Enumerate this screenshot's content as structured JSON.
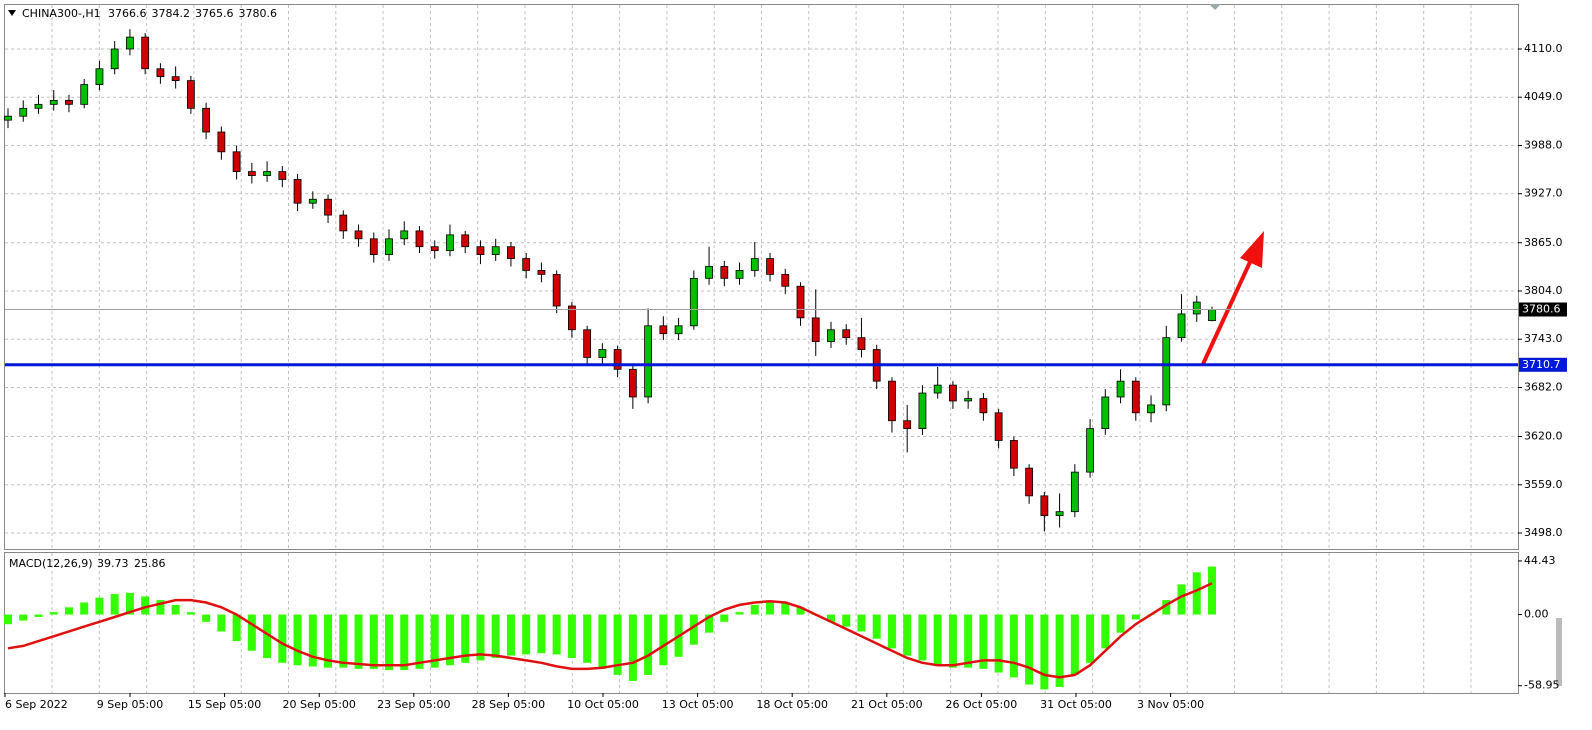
{
  "chart_data": [
    {
      "type": "candlestick",
      "symbol": "CHINA300-,H1",
      "header_values": [
        3766.6,
        3784.2,
        3765.6,
        3780.6
      ],
      "open": [
        4020,
        4025,
        4035,
        4040,
        4045,
        4040,
        4065,
        4085,
        4110,
        4125,
        4085,
        4075,
        4070,
        4035,
        4005,
        3980,
        3955,
        3950,
        3955,
        3945,
        3915,
        3920,
        3900,
        3880,
        3870,
        3850,
        3870,
        3880,
        3860,
        3855,
        3875,
        3860,
        3850,
        3860,
        3845,
        3830,
        3825,
        3785,
        3755,
        3720,
        3730,
        3705,
        3670,
        3760,
        3750,
        3760,
        3820,
        3835,
        3820,
        3830,
        3845,
        3825,
        3810,
        3770,
        3740,
        3755,
        3745,
        3730,
        3690,
        3640,
        3630,
        3675,
        3685,
        3665,
        3668,
        3650,
        3615,
        3580,
        3545,
        3520,
        3525,
        3575,
        3630,
        3670,
        3690,
        3650,
        3660,
        3745,
        3775,
        3766.6
      ],
      "high": [
        4035,
        4045,
        4052,
        4058,
        4052,
        4072,
        4095,
        4120,
        4135,
        4130,
        4092,
        4088,
        4076,
        4042,
        4012,
        3988,
        3966,
        3968,
        3962,
        3952,
        3930,
        3926,
        3906,
        3888,
        3878,
        3882,
        3892,
        3886,
        3868,
        3888,
        3880,
        3868,
        3870,
        3866,
        3852,
        3840,
        3830,
        3790,
        3760,
        3738,
        3735,
        3712,
        3782,
        3772,
        3770,
        3830,
        3860,
        3842,
        3840,
        3866,
        3852,
        3832,
        3815,
        3806,
        3765,
        3762,
        3770,
        3736,
        3695,
        3660,
        3685,
        3708,
        3690,
        3678,
        3675,
        3655,
        3620,
        3585,
        3550,
        3548,
        3585,
        3642,
        3680,
        3705,
        3695,
        3672,
        3760,
        3800,
        3798,
        3784.2
      ],
      "low": [
        4010,
        4018,
        4028,
        4032,
        4030,
        4035,
        4058,
        4078,
        4102,
        4078,
        4066,
        4060,
        4028,
        3996,
        3970,
        3945,
        3940,
        3942,
        3935,
        3905,
        3908,
        3890,
        3870,
        3860,
        3840,
        3842,
        3862,
        3852,
        3845,
        3848,
        3852,
        3838,
        3842,
        3835,
        3820,
        3815,
        3776,
        3745,
        3710,
        3712,
        3695,
        3655,
        3662,
        3742,
        3742,
        3755,
        3812,
        3810,
        3812,
        3822,
        3816,
        3800,
        3760,
        3722,
        3732,
        3736,
        3720,
        3680,
        3625,
        3600,
        3622,
        3668,
        3655,
        3655,
        3640,
        3605,
        3570,
        3535,
        3500,
        3505,
        3518,
        3568,
        3622,
        3662,
        3640,
        3638,
        3652,
        3740,
        3765,
        3765.6
      ],
      "close": [
        4025,
        4035,
        4040,
        4045,
        4040,
        4065,
        4085,
        4110,
        4125,
        4085,
        4075,
        4070,
        4035,
        4005,
        3980,
        3955,
        3950,
        3955,
        3945,
        3915,
        3920,
        3900,
        3880,
        3870,
        3850,
        3870,
        3880,
        3860,
        3855,
        3875,
        3860,
        3850,
        3860,
        3845,
        3830,
        3825,
        3785,
        3755,
        3720,
        3730,
        3705,
        3670,
        3760,
        3750,
        3760,
        3820,
        3835,
        3820,
        3830,
        3845,
        3825,
        3810,
        3770,
        3740,
        3755,
        3745,
        3730,
        3690,
        3640,
        3630,
        3675,
        3685,
        3665,
        3668,
        3650,
        3615,
        3580,
        3545,
        3520,
        3525,
        3575,
        3630,
        3670,
        3690,
        3650,
        3660,
        3745,
        3775,
        3790,
        3780.6
      ],
      "up_color": "#00c000",
      "down_color": "#d00000",
      "ylim": [
        3477.8,
        4165.6
      ],
      "yticks": [
        {
          "value": 3498,
          "label": "3498.0"
        },
        {
          "value": 3559,
          "label": "3559.0"
        },
        {
          "value": 3620,
          "label": "3620.0"
        },
        {
          "value": 3682,
          "label": "3682.0"
        },
        {
          "value": 3743,
          "label": "3743.0"
        },
        {
          "value": 3804,
          "label": "3804.0"
        },
        {
          "value": 3865,
          "label": "3865.0"
        },
        {
          "value": 3927,
          "label": "3927.0"
        },
        {
          "value": 3988,
          "label": "3988.0"
        },
        {
          "value": 4049,
          "label": "4049.0"
        },
        {
          "value": 4110,
          "label": "4110.0"
        }
      ],
      "grid": true,
      "level_line": {
        "value": 3710.7,
        "color": "#0018d8"
      },
      "current_price": 3780.6,
      "x_labels": [
        "6 Sep 2022",
        "9 Sep 05:00",
        "15 Sep 05:00",
        "20 Sep 05:00",
        "23 Sep 05:00",
        "28 Sep 05:00",
        "10 Oct 05:00",
        "13 Oct 05:00",
        "18 Oct 05:00",
        "21 Oct 05:00",
        "26 Oct 05:00",
        "31 Oct 05:00",
        "3 Nov 05:00"
      ]
    },
    {
      "type": "macd",
      "title": "MACD(12,26,9)",
      "macd_value": 39.73,
      "signal_value": 25.86,
      "histogram": [
        -8,
        -5,
        -2,
        2,
        6,
        10,
        14,
        17,
        18,
        15,
        12,
        8,
        2,
        -6,
        -14,
        -22,
        -30,
        -36,
        -40,
        -42,
        -43,
        -44,
        -44,
        -45,
        -45,
        -46,
        -46,
        -45,
        -44,
        -42,
        -40,
        -38,
        -36,
        -34,
        -33,
        -32,
        -33,
        -36,
        -40,
        -45,
        -50,
        -55,
        -50,
        -42,
        -35,
        -25,
        -15,
        -6,
        2,
        8,
        11,
        10,
        6,
        0,
        -6,
        -10,
        -14,
        -20,
        -28,
        -34,
        -38,
        -42,
        -44,
        -44,
        -45,
        -48,
        -52,
        -58,
        -62,
        -60,
        -50,
        -40,
        -28,
        -15,
        -4,
        0,
        12,
        25,
        35,
        39.73
      ],
      "signal": [
        -28,
        -26,
        -22,
        -18,
        -14,
        -10,
        -6,
        -2,
        2,
        6,
        9,
        12,
        12,
        10,
        6,
        0,
        -8,
        -16,
        -24,
        -30,
        -35,
        -38,
        -40,
        -41,
        -42,
        -42,
        -42,
        -40,
        -38,
        -36,
        -34,
        -33,
        -34,
        -36,
        -38,
        -40,
        -43,
        -45,
        -45,
        -44,
        -42,
        -40,
        -34,
        -26,
        -18,
        -10,
        -2,
        4,
        8,
        10,
        11,
        10,
        6,
        0,
        -6,
        -12,
        -18,
        -24,
        -30,
        -36,
        -40,
        -42,
        -42,
        -40,
        -38,
        -38,
        -40,
        -44,
        -50,
        -52,
        -50,
        -42,
        -30,
        -18,
        -8,
        0,
        8,
        15,
        20,
        25.86
      ],
      "histogram_color": "#33ff00",
      "signal_color": "#e01010",
      "ylim": [
        -65,
        51
      ],
      "yticks": [
        -58.95,
        {
          "value": 0,
          "label": "0.00"
        },
        44.43
      ]
    }
  ]
}
